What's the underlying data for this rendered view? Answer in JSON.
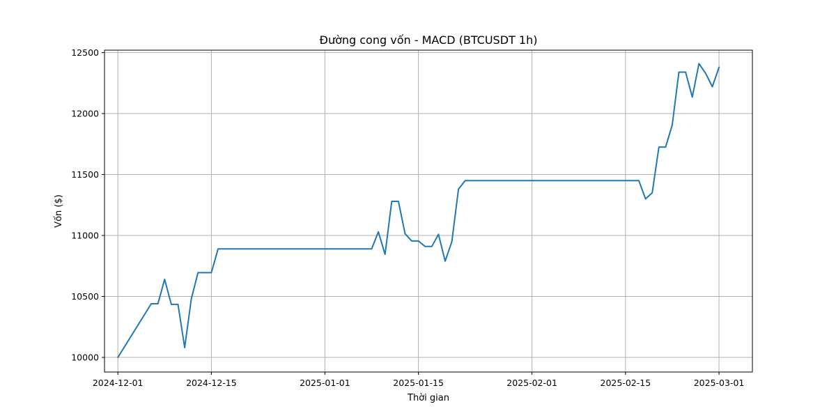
{
  "chart_data": {
    "type": "line",
    "title": "Đường cong vốn - MACD (BTCUSDT 1h)",
    "xlabel": "Thời gian",
    "ylabel": "Vốn ($)",
    "xlim": [
      "2024-11-29",
      "2025-03-06"
    ],
    "ylim": [
      9880,
      12520
    ],
    "grid": true,
    "x_ticks": [
      {
        "date": "2024-12-01",
        "label": "2024-12-01"
      },
      {
        "date": "2024-12-15",
        "label": "2024-12-15"
      },
      {
        "date": "2025-01-01",
        "label": "2025-01-01"
      },
      {
        "date": "2025-01-15",
        "label": "2025-01-15"
      },
      {
        "date": "2025-02-01",
        "label": "2025-02-01"
      },
      {
        "date": "2025-02-15",
        "label": "2025-02-15"
      },
      {
        "date": "2025-03-01",
        "label": "2025-03-01"
      }
    ],
    "y_ticks": [
      {
        "value": 10000,
        "label": "10000"
      },
      {
        "value": 10500,
        "label": "10500"
      },
      {
        "value": 11000,
        "label": "11000"
      },
      {
        "value": 11500,
        "label": "11500"
      },
      {
        "value": 12000,
        "label": "12000"
      },
      {
        "value": 12500,
        "label": "12500"
      }
    ],
    "series": [
      {
        "color": "#1f77b4",
        "x": [
          "2024-12-01",
          "2024-12-06",
          "2024-12-07",
          "2024-12-08",
          "2024-12-09",
          "2024-12-10",
          "2024-12-11",
          "2024-12-12",
          "2024-12-13",
          "2024-12-14",
          "2024-12-15",
          "2024-12-16",
          "2025-01-08",
          "2025-01-09",
          "2025-01-10",
          "2025-01-11",
          "2025-01-12",
          "2025-01-13",
          "2025-01-14",
          "2025-01-15",
          "2025-01-16",
          "2025-01-17",
          "2025-01-18",
          "2025-01-19",
          "2025-01-20",
          "2025-01-21",
          "2025-01-22",
          "2025-02-17",
          "2025-02-18",
          "2025-02-19",
          "2025-02-20",
          "2025-02-21",
          "2025-02-22",
          "2025-02-23",
          "2025-02-24",
          "2025-02-25",
          "2025-02-26",
          "2025-02-27",
          "2025-02-28",
          "2025-03-01"
        ],
        "values": [
          10000,
          10440,
          10440,
          10640,
          10435,
          10435,
          10080,
          10480,
          10695,
          10695,
          10695,
          10890,
          10890,
          11030,
          10845,
          11280,
          11280,
          11015,
          10955,
          10955,
          10910,
          10910,
          11010,
          10790,
          10950,
          11380,
          11450,
          11450,
          11300,
          11350,
          11725,
          11725,
          11905,
          12340,
          12340,
          12135,
          12410,
          12330,
          12220,
          12380
        ]
      }
    ]
  }
}
